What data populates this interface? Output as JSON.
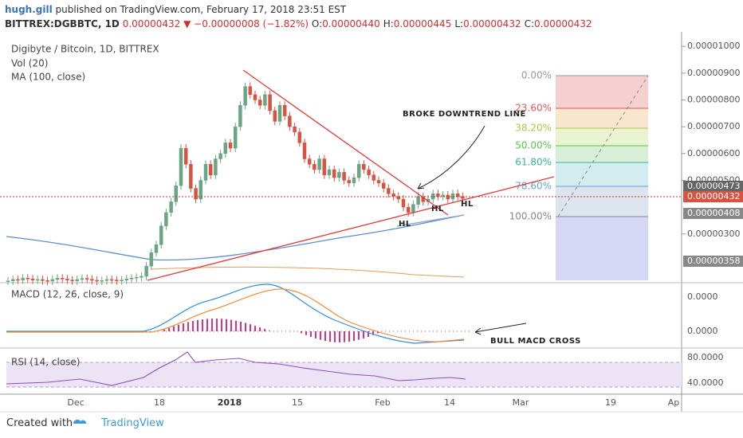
{
  "header": {
    "author": "hugh.gill",
    "published": "published on TradingView.com, February 17, 2018 23:51 EST",
    "symbol": "BITTREX:DGBBTC, 1D",
    "last": "0.00000432",
    "arrow": "▼",
    "change": "−0.00000008 (−1.82%)",
    "ohlc": [
      [
        "O:",
        "0.00000440"
      ],
      [
        "H:",
        "0.00000445"
      ],
      [
        "L:",
        "0.00000432"
      ],
      [
        "C:",
        "0.00000432"
      ]
    ]
  },
  "chart_data": {
    "type": "candlestick",
    "title": "Digibyte / Bitcoin, 1D, BITTREX",
    "indicators": [
      "Vol (20)",
      "MA (100, close)"
    ],
    "closes": [
      1.25e-06,
      1.3e-06,
      1.28e-06,
      1.35e-06,
      1.32e-06,
      1.28e-06,
      1.3e-06,
      1.26e-06,
      1.24e-06,
      1.3e-06,
      1.35e-06,
      1.32e-06,
      1.28e-06,
      1.25e-06,
      1.3e-06,
      1.34e-06,
      1.31e-06,
      1.27e-06,
      1.24e-06,
      1.26e-06,
      1.3e-06,
      1.28e-06,
      1.25e-06,
      1.28e-06,
      1.32e-06,
      1.35e-06,
      1.38e-06,
      1.42e-06,
      1.8e-06,
      2.3e-06,
      2.6e-06,
      3.3e-06,
      3.8e-06,
      4.2e-06,
      4.8e-06,
      6.2e-06,
      5.6e-06,
      4.7e-06,
      4.3e-06,
      5e-06,
      5.6e-06,
      5.2e-06,
      5.8e-06,
      6e-06,
      6.4e-06,
      6.2e-06,
      7e-06,
      7.8e-06,
      8.5e-06,
      8.2e-06,
      8e-06,
      7.8e-06,
      8.2e-06,
      7.6e-06,
      7.2e-06,
      7.8e-06,
      7.4e-06,
      7e-06,
      6.8e-06,
      6.4e-06,
      5.8e-06,
      5.6e-06,
      5.4e-06,
      5.8e-06,
      5.2e-06,
      5.4e-06,
      5.1e-06,
      5.3e-06,
      5e-06,
      4.9e-06,
      5.1e-06,
      5.6e-06,
      5.4e-06,
      5.2e-06,
      5e-06,
      4.9e-06,
      4.7e-06,
      4.5e-06,
      4.4e-06,
      4.3e-06,
      4e-06,
      3.8e-06,
      4.1e-06,
      4.4e-06,
      4.2e-06,
      4.3e-06,
      4.5e-06,
      4.4e-06,
      4.45e-06,
      4.3e-06,
      4.5e-06,
      4.4e-06,
      4.32e-06
    ],
    "ylim": [
      1.18e-06,
      1.054e-05
    ],
    "yticks": [
      {
        "value": 1e-05,
        "label": "0.00001000"
      },
      {
        "value": 9e-06,
        "label": "0.00000900"
      },
      {
        "value": 8e-06,
        "label": "0.00000800"
      },
      {
        "value": 7e-06,
        "label": "0.00000700"
      },
      {
        "value": 6e-06,
        "label": "0.00000600"
      },
      {
        "value": 5e-06,
        "label": "0.00000500"
      },
      {
        "value": 3e-06,
        "label": "0.00000300"
      }
    ],
    "price_labels": [
      "0.00000473",
      "0.00000432",
      "0.00000408",
      "0.00000358"
    ],
    "x_labels": [
      "Dec",
      "18",
      "2018",
      "15",
      "Feb",
      "14",
      "Mar",
      "19",
      "Ap"
    ],
    "fib_labels": [
      "0.00%",
      "23.60%",
      "38.20%",
      "50.00%",
      "61.80%",
      "78.60%",
      "100.00%"
    ],
    "annotations": [
      "BROKE DOWNTREND LINE",
      "HL",
      "HL",
      "HL",
      "BULL MACD CROSS"
    ],
    "macd": {
      "title": "MACD (12, 26, close, 9)",
      "ticks": [
        "0.0000",
        "0.0000"
      ]
    },
    "rsi": {
      "title": "RSI (14, close)",
      "ticks": [
        "80.0000",
        "40.0000"
      ]
    }
  },
  "footer": {
    "created": "Created with",
    "brand": "TradingView"
  }
}
